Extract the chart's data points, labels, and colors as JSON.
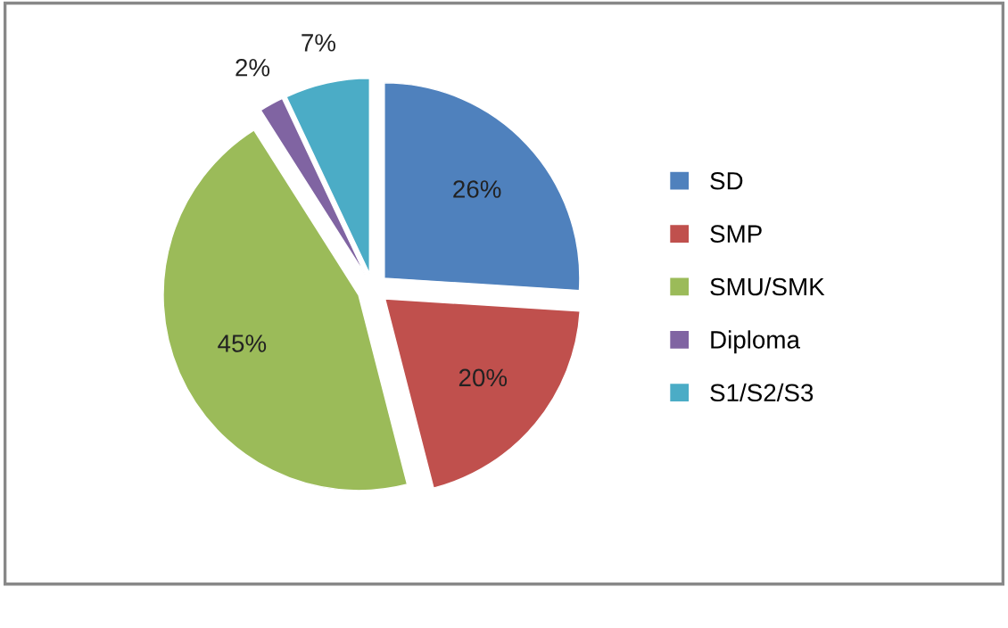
{
  "chart_data": {
    "type": "pie",
    "categories": [
      "SD",
      "SMP",
      "SMU/SMK",
      "Diploma",
      "S1/S2/S3"
    ],
    "values": [
      26,
      20,
      45,
      2,
      7
    ],
    "colors": [
      "#4f81bd",
      "#c0504d",
      "#9bbb59",
      "#8064a2",
      "#4bacc6"
    ],
    "value_labels": [
      "26%",
      "20%",
      "45%",
      "2%",
      "7%"
    ],
    "legend": "right"
  }
}
